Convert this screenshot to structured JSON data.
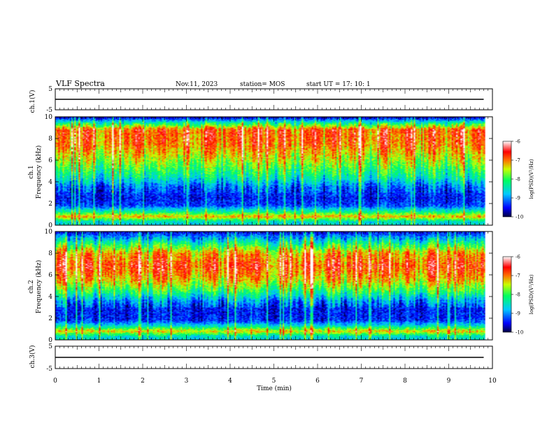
{
  "header": {
    "title": "VLF Spectra",
    "date": "Nov.11, 2023",
    "station": "station= MOS",
    "start_ut": "start  UT =   17: 10: 1"
  },
  "chart_data": [
    {
      "type": "line",
      "name": "ch1_waveform",
      "ylabel": "ch.1(V)",
      "ylim": [
        -5,
        5
      ],
      "y_ticks": [
        "5",
        "-5"
      ],
      "x": [
        0,
        9.8
      ],
      "y": [
        0,
        0
      ],
      "color": "#000000"
    },
    {
      "type": "heatmap",
      "name": "ch1_spectrogram",
      "ylabel": "ch.1\nFrequency (kHz)",
      "ylabel_top": "ch.1",
      "ylabel_bottom": "Frequency (kHz)",
      "ylim": [
        0,
        10
      ],
      "y_ticks": [
        "0",
        "2",
        "4",
        "6",
        "8",
        "10"
      ],
      "xlim": [
        0,
        10
      ],
      "data_end_min": 9.8,
      "colorbar": {
        "label": "log(PSD)(V²/Hz)",
        "range": [
          -10,
          -6
        ],
        "ticks": [
          "-6",
          "-7",
          "-8",
          "-9",
          "-10"
        ]
      },
      "band_profile_kHz": [
        {
          "freq": 0.3,
          "level": -8.6
        },
        {
          "freq": 0.8,
          "level": -7.2
        },
        {
          "freq": 1.2,
          "level": -8.2
        },
        {
          "freq": 1.8,
          "level": -9.3
        },
        {
          "freq": 2.5,
          "level": -9.5
        },
        {
          "freq": 3.5,
          "level": -9.2
        },
        {
          "freq": 4.5,
          "level": -8.4
        },
        {
          "freq": 6.0,
          "level": -7.6
        },
        {
          "freq": 7.5,
          "level": -7.0
        },
        {
          "freq": 8.8,
          "level": -6.9
        },
        {
          "freq": 9.5,
          "level": -8.5
        },
        {
          "freq": 10.0,
          "level": -9.8
        }
      ]
    },
    {
      "type": "heatmap",
      "name": "ch2_spectrogram",
      "ylabel": "ch.2\nFrequency (kHz)",
      "ylabel_top": "ch.2",
      "ylabel_bottom": "Frequency (kHz)",
      "ylim": [
        0,
        10
      ],
      "y_ticks": [
        "0",
        "2",
        "4",
        "6",
        "8",
        "10"
      ],
      "xlim": [
        0,
        10
      ],
      "data_end_min": 9.8,
      "colorbar": {
        "label": "log(PSD)(V²/Hz)",
        "range": [
          -10,
          -6
        ],
        "ticks": [
          "-6",
          "-7",
          "-8",
          "-9",
          "-10"
        ]
      },
      "band_profile_kHz": [
        {
          "freq": 0.3,
          "level": -8.6
        },
        {
          "freq": 0.8,
          "level": -7.3
        },
        {
          "freq": 1.3,
          "level": -8.6
        },
        {
          "freq": 1.8,
          "level": -9.4
        },
        {
          "freq": 2.8,
          "level": -9.5
        },
        {
          "freq": 3.6,
          "level": -9.0
        },
        {
          "freq": 4.5,
          "level": -8.1
        },
        {
          "freq": 5.5,
          "level": -7.3
        },
        {
          "freq": 6.8,
          "level": -6.8
        },
        {
          "freq": 8.0,
          "level": -7.2
        },
        {
          "freq": 9.0,
          "level": -8.4
        },
        {
          "freq": 10.0,
          "level": -9.6
        }
      ]
    },
    {
      "type": "line",
      "name": "ch3_waveform",
      "ylabel": "ch.3(V)",
      "ylim": [
        -5,
        5
      ],
      "y_ticks": [
        "5",
        "-5"
      ],
      "x": [
        0,
        9.8
      ],
      "y": [
        0,
        0
      ],
      "color": "#000000"
    }
  ],
  "x_axis": {
    "label": "Time (min)",
    "ticks": [
      "0",
      "1",
      "2",
      "3",
      "4",
      "5",
      "6",
      "7",
      "8",
      "9",
      "10"
    ],
    "range": [
      0,
      10
    ]
  },
  "colors": {
    "colormap": [
      "#000040",
      "#0000ff",
      "#00c0ff",
      "#00ff80",
      "#ffff00",
      "#ff0000",
      "#ffffff"
    ]
  }
}
